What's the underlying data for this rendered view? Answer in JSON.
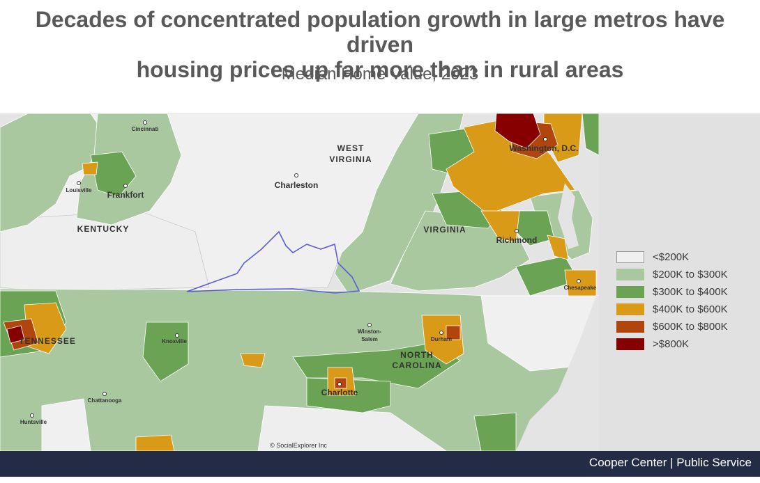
{
  "title_line1": "Decades of concentrated population growth in large metros have driven",
  "title_line2": "housing prices up far more than in rural areas",
  "subtitle": "Median Home Value, 2023",
  "map": {
    "state_labels": {
      "west_virginia_1": "WEST",
      "west_virginia_2": "VIRGINIA",
      "kentucky": "KENTUCKY",
      "virginia": "VIRGINIA",
      "tennessee": "TENNESSEE",
      "north_carolina_1": "NORTH",
      "north_carolina_2": "CAROLINA"
    },
    "city_labels": {
      "cincinnati": "Cincinnati",
      "louisville": "Louisville",
      "frankfort": "Frankfort",
      "charleston": "Charleston",
      "washington": "Washington, D.C.",
      "richmond": "Richmond",
      "chesapeake": "Chesapeake",
      "knoxville": "Knoxville",
      "winston_salem_1": "Winston-",
      "winston_salem_2": "Salem",
      "durham": "Durham",
      "charlotte": "Charlotte",
      "chattanooga": "Chattanooga",
      "huntsville": "Huntsville"
    },
    "attribution": "© SocialExplorer Inc"
  },
  "legend": [
    {
      "label": "<$200K",
      "color": "#f0f0f0"
    },
    {
      "label": "$200K to $300K",
      "color": "#a9c8a0"
    },
    {
      "label": "$300K to $400K",
      "color": "#6aa354"
    },
    {
      "label": "$400K to $600K",
      "color": "#d99a17"
    },
    {
      "label": "$600K to $800K",
      "color": "#b0460c"
    },
    {
      "label": ">$800K",
      "color": "#860000"
    }
  ],
  "footer": "Cooper Center | Public Service"
}
